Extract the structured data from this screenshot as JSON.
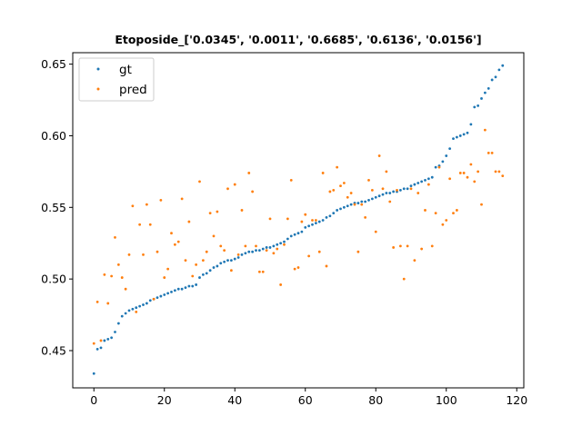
{
  "chart_data": {
    "type": "scatter",
    "title": "Etoposide_['0.0345', '0.0011', '0.6685', '0.6136', '0.0156']",
    "xlabel": "",
    "ylabel": "",
    "xlim": [
      -6,
      122
    ],
    "ylim": [
      0.424,
      0.658
    ],
    "xticks": [
      0,
      20,
      40,
      60,
      80,
      100,
      120
    ],
    "yticks": [
      0.45,
      0.5,
      0.55,
      0.6,
      0.65
    ],
    "ytick_labels": [
      "0.45",
      "0.50",
      "0.55",
      "0.60",
      "0.65"
    ],
    "grid": false,
    "legend_position": "top-left",
    "colors": {
      "gt": "#1f77b4",
      "pred": "#ff7f0e"
    },
    "series": [
      {
        "name": "gt",
        "x": [
          0,
          1,
          2,
          3,
          4,
          5,
          6,
          7,
          8,
          9,
          10,
          11,
          12,
          13,
          14,
          15,
          16,
          17,
          18,
          19,
          20,
          21,
          22,
          23,
          24,
          25,
          26,
          27,
          28,
          29,
          30,
          31,
          32,
          33,
          34,
          35,
          36,
          37,
          38,
          39,
          40,
          41,
          42,
          43,
          44,
          45,
          46,
          47,
          48,
          49,
          50,
          51,
          52,
          53,
          54,
          55,
          56,
          57,
          58,
          59,
          60,
          61,
          62,
          63,
          64,
          65,
          66,
          67,
          68,
          69,
          70,
          71,
          72,
          73,
          74,
          75,
          76,
          77,
          78,
          79,
          80,
          81,
          82,
          83,
          84,
          85,
          86,
          87,
          88,
          89,
          90,
          91,
          92,
          93,
          94,
          95,
          96,
          97,
          98,
          99,
          100,
          101,
          102,
          103,
          104,
          105,
          106,
          107,
          108,
          109,
          110,
          111,
          112,
          113,
          114,
          115,
          116
        ],
        "values": [
          0.434,
          0.451,
          0.452,
          0.457,
          0.458,
          0.459,
          0.463,
          0.469,
          0.474,
          0.476,
          0.478,
          0.479,
          0.48,
          0.481,
          0.482,
          0.483,
          0.485,
          0.486,
          0.487,
          0.488,
          0.489,
          0.49,
          0.491,
          0.492,
          0.493,
          0.493,
          0.494,
          0.495,
          0.495,
          0.496,
          0.501,
          0.503,
          0.504,
          0.506,
          0.508,
          0.509,
          0.511,
          0.512,
          0.513,
          0.513,
          0.514,
          0.515,
          0.517,
          0.518,
          0.519,
          0.519,
          0.52,
          0.52,
          0.521,
          0.522,
          0.522,
          0.523,
          0.524,
          0.525,
          0.526,
          0.528,
          0.53,
          0.531,
          0.532,
          0.533,
          0.536,
          0.537,
          0.538,
          0.539,
          0.54,
          0.541,
          0.543,
          0.544,
          0.546,
          0.548,
          0.549,
          0.55,
          0.551,
          0.552,
          0.553,
          0.553,
          0.554,
          0.554,
          0.555,
          0.556,
          0.557,
          0.558,
          0.559,
          0.56,
          0.56,
          0.561,
          0.561,
          0.562,
          0.563,
          0.563,
          0.565,
          0.566,
          0.567,
          0.568,
          0.569,
          0.57,
          0.571,
          0.578,
          0.579,
          0.582,
          0.586,
          0.591,
          0.598,
          0.599,
          0.6,
          0.601,
          0.602,
          0.608,
          0.62,
          0.621,
          0.626,
          0.63,
          0.633,
          0.639,
          0.641,
          0.646,
          0.649
        ]
      },
      {
        "name": "pred",
        "x": [
          0,
          1,
          2,
          3,
          4,
          5,
          6,
          7,
          8,
          9,
          10,
          11,
          12,
          13,
          14,
          15,
          16,
          17,
          18,
          19,
          20,
          21,
          22,
          23,
          24,
          25,
          26,
          27,
          28,
          29,
          30,
          31,
          32,
          33,
          34,
          35,
          36,
          37,
          38,
          39,
          40,
          41,
          42,
          43,
          44,
          45,
          46,
          47,
          48,
          49,
          50,
          51,
          52,
          53,
          54,
          55,
          56,
          57,
          58,
          59,
          60,
          61,
          62,
          63,
          64,
          65,
          66,
          67,
          68,
          69,
          70,
          71,
          72,
          73,
          74,
          75,
          76,
          77,
          78,
          79,
          80,
          81,
          82,
          83,
          84,
          85,
          86,
          87,
          88,
          89,
          90,
          91,
          92,
          93,
          94,
          95,
          96,
          97,
          98,
          99,
          100,
          101,
          102,
          103,
          104,
          105,
          106,
          107,
          108,
          109,
          110,
          111,
          112,
          113,
          114,
          115,
          116
        ],
        "values": [
          0.455,
          0.484,
          0.457,
          0.503,
          0.483,
          0.502,
          0.529,
          0.51,
          0.501,
          0.493,
          0.517,
          0.551,
          0.477,
          0.538,
          0.517,
          0.552,
          0.538,
          0.486,
          0.519,
          0.555,
          0.501,
          0.507,
          0.532,
          0.524,
          0.526,
          0.556,
          0.513,
          0.54,
          0.502,
          0.51,
          0.568,
          0.513,
          0.519,
          0.546,
          0.53,
          0.547,
          0.523,
          0.52,
          0.563,
          0.506,
          0.566,
          0.517,
          0.548,
          0.523,
          0.574,
          0.561,
          0.523,
          0.505,
          0.505,
          0.52,
          0.542,
          0.518,
          0.521,
          0.496,
          0.524,
          0.542,
          0.569,
          0.507,
          0.508,
          0.54,
          0.545,
          0.516,
          0.541,
          0.541,
          0.519,
          0.574,
          0.509,
          0.561,
          0.562,
          0.578,
          0.565,
          0.567,
          0.557,
          0.56,
          0.552,
          0.519,
          0.552,
          0.543,
          0.569,
          0.562,
          0.533,
          0.586,
          0.563,
          0.575,
          0.554,
          0.522,
          0.562,
          0.523,
          0.5,
          0.523,
          0.563,
          0.513,
          0.56,
          0.521,
          0.548,
          0.566,
          0.523,
          0.546,
          0.578,
          0.538,
          0.541,
          0.57,
          0.546,
          0.548,
          0.574,
          0.574,
          0.571,
          0.58,
          0.568,
          0.575,
          0.552,
          0.604,
          0.588,
          0.588,
          0.575,
          0.575,
          0.572
        ]
      }
    ]
  }
}
